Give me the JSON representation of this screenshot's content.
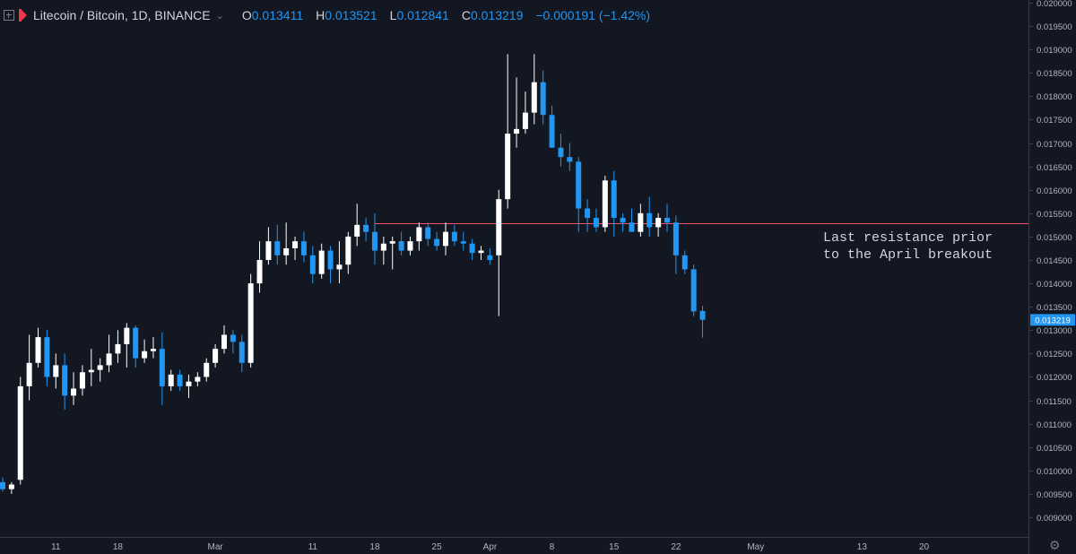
{
  "header": {
    "symbol": "Litecoin / Bitcoin, 1D, BINANCE",
    "open_label": "O",
    "open_value": "0.013411",
    "high_label": "H",
    "high_value": "0.013521",
    "low_label": "L",
    "low_value": "0.012841",
    "close_label": "C",
    "close_value": "0.013219",
    "change": "−0.000191 (−1.42%)"
  },
  "colors": {
    "background": "#131722",
    "up": "#ffffff",
    "down": "#2196f3",
    "resistance": "#f7525f",
    "axis_text": "#b2b5be"
  },
  "annotation": {
    "line1": "Last resistance prior",
    "line2": "to the April breakout"
  },
  "chart_data": {
    "type": "candlestick",
    "y_axis": {
      "ticks": [
        "0.020000",
        "0.019500",
        "0.019000",
        "0.018500",
        "0.018000",
        "0.017500",
        "0.017000",
        "0.016500",
        "0.016000",
        "0.015500",
        "0.015000",
        "0.014500",
        "0.014000",
        "0.013500",
        "0.013000",
        "0.012500",
        "0.012000",
        "0.011500",
        "0.011000",
        "0.010500",
        "0.010000",
        "0.009500",
        "0.009000"
      ],
      "range": [
        0.0087,
        0.0202
      ]
    },
    "x_axis": {
      "start": "2019-02-05",
      "range_days": [
        0,
        78
      ],
      "ticks": [
        {
          "day": 6,
          "label": "11"
        },
        {
          "day": 13,
          "label": "18"
        },
        {
          "day": 24,
          "label": "Mar"
        },
        {
          "day": 35,
          "label": "11"
        },
        {
          "day": 42,
          "label": "18"
        },
        {
          "day": 49,
          "label": "25"
        },
        {
          "day": 55,
          "label": "Apr"
        },
        {
          "day": 62,
          "label": "8"
        },
        {
          "day": 69,
          "label": "15"
        },
        {
          "day": 76,
          "label": "22"
        },
        {
          "day": 85,
          "label": "May"
        },
        {
          "day": 97,
          "label": "13"
        },
        {
          "day": 104,
          "label": "20"
        }
      ]
    },
    "resistance_level": 0.01528,
    "last_price_label": "0.013219",
    "candles": [
      [
        0.00975,
        0.00985,
        0.00955,
        0.0096
      ],
      [
        0.0096,
        0.00975,
        0.0095,
        0.0097
      ],
      [
        0.0098,
        0.012,
        0.0097,
        0.0118
      ],
      [
        0.0118,
        0.0129,
        0.0115,
        0.0123
      ],
      [
        0.0123,
        0.01305,
        0.0122,
        0.01285
      ],
      [
        0.01285,
        0.013,
        0.0118,
        0.012
      ],
      [
        0.012,
        0.0125,
        0.01175,
        0.01225
      ],
      [
        0.01225,
        0.0125,
        0.0113,
        0.0116
      ],
      [
        0.0116,
        0.0121,
        0.0114,
        0.01175
      ],
      [
        0.01175,
        0.01225,
        0.0116,
        0.0121
      ],
      [
        0.0121,
        0.0126,
        0.0118,
        0.01215
      ],
      [
        0.01215,
        0.0124,
        0.0119,
        0.01225
      ],
      [
        0.01225,
        0.0129,
        0.0121,
        0.0125
      ],
      [
        0.0125,
        0.013,
        0.0123,
        0.0127
      ],
      [
        0.0127,
        0.01315,
        0.0122,
        0.01305
      ],
      [
        0.01305,
        0.0131,
        0.0122,
        0.0124
      ],
      [
        0.0124,
        0.0128,
        0.0123,
        0.01255
      ],
      [
        0.01255,
        0.01285,
        0.0124,
        0.0126
      ],
      [
        0.0126,
        0.01295,
        0.0114,
        0.0118
      ],
      [
        0.0118,
        0.01215,
        0.0117,
        0.01205
      ],
      [
        0.01205,
        0.01215,
        0.0117,
        0.0118
      ],
      [
        0.0118,
        0.01205,
        0.01155,
        0.0119
      ],
      [
        0.0119,
        0.0121,
        0.0118,
        0.012
      ],
      [
        0.012,
        0.0124,
        0.0119,
        0.0123
      ],
      [
        0.0123,
        0.0127,
        0.0122,
        0.0126
      ],
      [
        0.0126,
        0.0131,
        0.0125,
        0.0129
      ],
      [
        0.0129,
        0.013,
        0.0125,
        0.01275
      ],
      [
        0.01275,
        0.0129,
        0.0121,
        0.0123
      ],
      [
        0.0123,
        0.0142,
        0.0122,
        0.014
      ],
      [
        0.014,
        0.0149,
        0.0138,
        0.0145
      ],
      [
        0.0145,
        0.0152,
        0.0144,
        0.0149
      ],
      [
        0.0149,
        0.01525,
        0.0144,
        0.0146
      ],
      [
        0.0146,
        0.0153,
        0.0144,
        0.01475
      ],
      [
        0.01475,
        0.015,
        0.0145,
        0.0149
      ],
      [
        0.0149,
        0.0151,
        0.01445,
        0.0146
      ],
      [
        0.0146,
        0.0148,
        0.014,
        0.0142
      ],
      [
        0.0142,
        0.01485,
        0.0141,
        0.0147
      ],
      [
        0.0147,
        0.0148,
        0.014,
        0.0143
      ],
      [
        0.0143,
        0.0149,
        0.014,
        0.0144
      ],
      [
        0.0144,
        0.0151,
        0.0142,
        0.015
      ],
      [
        0.015,
        0.0157,
        0.0148,
        0.01525
      ],
      [
        0.01525,
        0.0154,
        0.0149,
        0.0151
      ],
      [
        0.0151,
        0.0155,
        0.0144,
        0.0147
      ],
      [
        0.0147,
        0.015,
        0.0144,
        0.01485
      ],
      [
        0.01485,
        0.015,
        0.0143,
        0.0149
      ],
      [
        0.0149,
        0.0151,
        0.0146,
        0.0147
      ],
      [
        0.0147,
        0.015,
        0.0146,
        0.0149
      ],
      [
        0.0149,
        0.0153,
        0.0147,
        0.0152
      ],
      [
        0.0152,
        0.0153,
        0.0148,
        0.01495
      ],
      [
        0.01495,
        0.0151,
        0.0147,
        0.0148
      ],
      [
        0.0148,
        0.0153,
        0.0146,
        0.0151
      ],
      [
        0.0151,
        0.01525,
        0.0148,
        0.0149
      ],
      [
        0.0149,
        0.0151,
        0.0147,
        0.01485
      ],
      [
        0.01485,
        0.01495,
        0.0145,
        0.01465
      ],
      [
        0.01465,
        0.0148,
        0.0145,
        0.0147
      ],
      [
        0.0146,
        0.01475,
        0.0144,
        0.0145
      ],
      [
        0.0146,
        0.016,
        0.0133,
        0.0158
      ],
      [
        0.0158,
        0.0189,
        0.0156,
        0.0172
      ],
      [
        0.0172,
        0.0184,
        0.0169,
        0.0173
      ],
      [
        0.0173,
        0.0181,
        0.0172,
        0.01765
      ],
      [
        0.01765,
        0.0189,
        0.0174,
        0.0183
      ],
      [
        0.0183,
        0.01855,
        0.0174,
        0.0176
      ],
      [
        0.0176,
        0.0178,
        0.0169,
        0.0169
      ],
      [
        0.0169,
        0.0172,
        0.0165,
        0.0167
      ],
      [
        0.0167,
        0.017,
        0.0164,
        0.0166
      ],
      [
        0.0166,
        0.0167,
        0.0151,
        0.0156
      ],
      [
        0.0156,
        0.0158,
        0.0151,
        0.0154
      ],
      [
        0.0154,
        0.0156,
        0.0151,
        0.0152
      ],
      [
        0.0152,
        0.0163,
        0.0151,
        0.0162
      ],
      [
        0.0162,
        0.0164,
        0.015,
        0.0154
      ],
      [
        0.0154,
        0.0155,
        0.0151,
        0.0153
      ],
      [
        0.0153,
        0.0156,
        0.0151,
        0.0151
      ],
      [
        0.0151,
        0.0157,
        0.015,
        0.0155
      ],
      [
        0.0155,
        0.01585,
        0.015,
        0.0152
      ],
      [
        0.0152,
        0.0155,
        0.015,
        0.0154
      ],
      [
        0.0154,
        0.0157,
        0.0151,
        0.0153
      ],
      [
        0.0153,
        0.01545,
        0.0142,
        0.0146
      ],
      [
        0.0146,
        0.0147,
        0.0142,
        0.0143
      ],
      [
        0.0143,
        0.0144,
        0.0133,
        0.0134
      ],
      [
        0.01341,
        0.01352,
        0.01284,
        0.01322
      ]
    ]
  }
}
